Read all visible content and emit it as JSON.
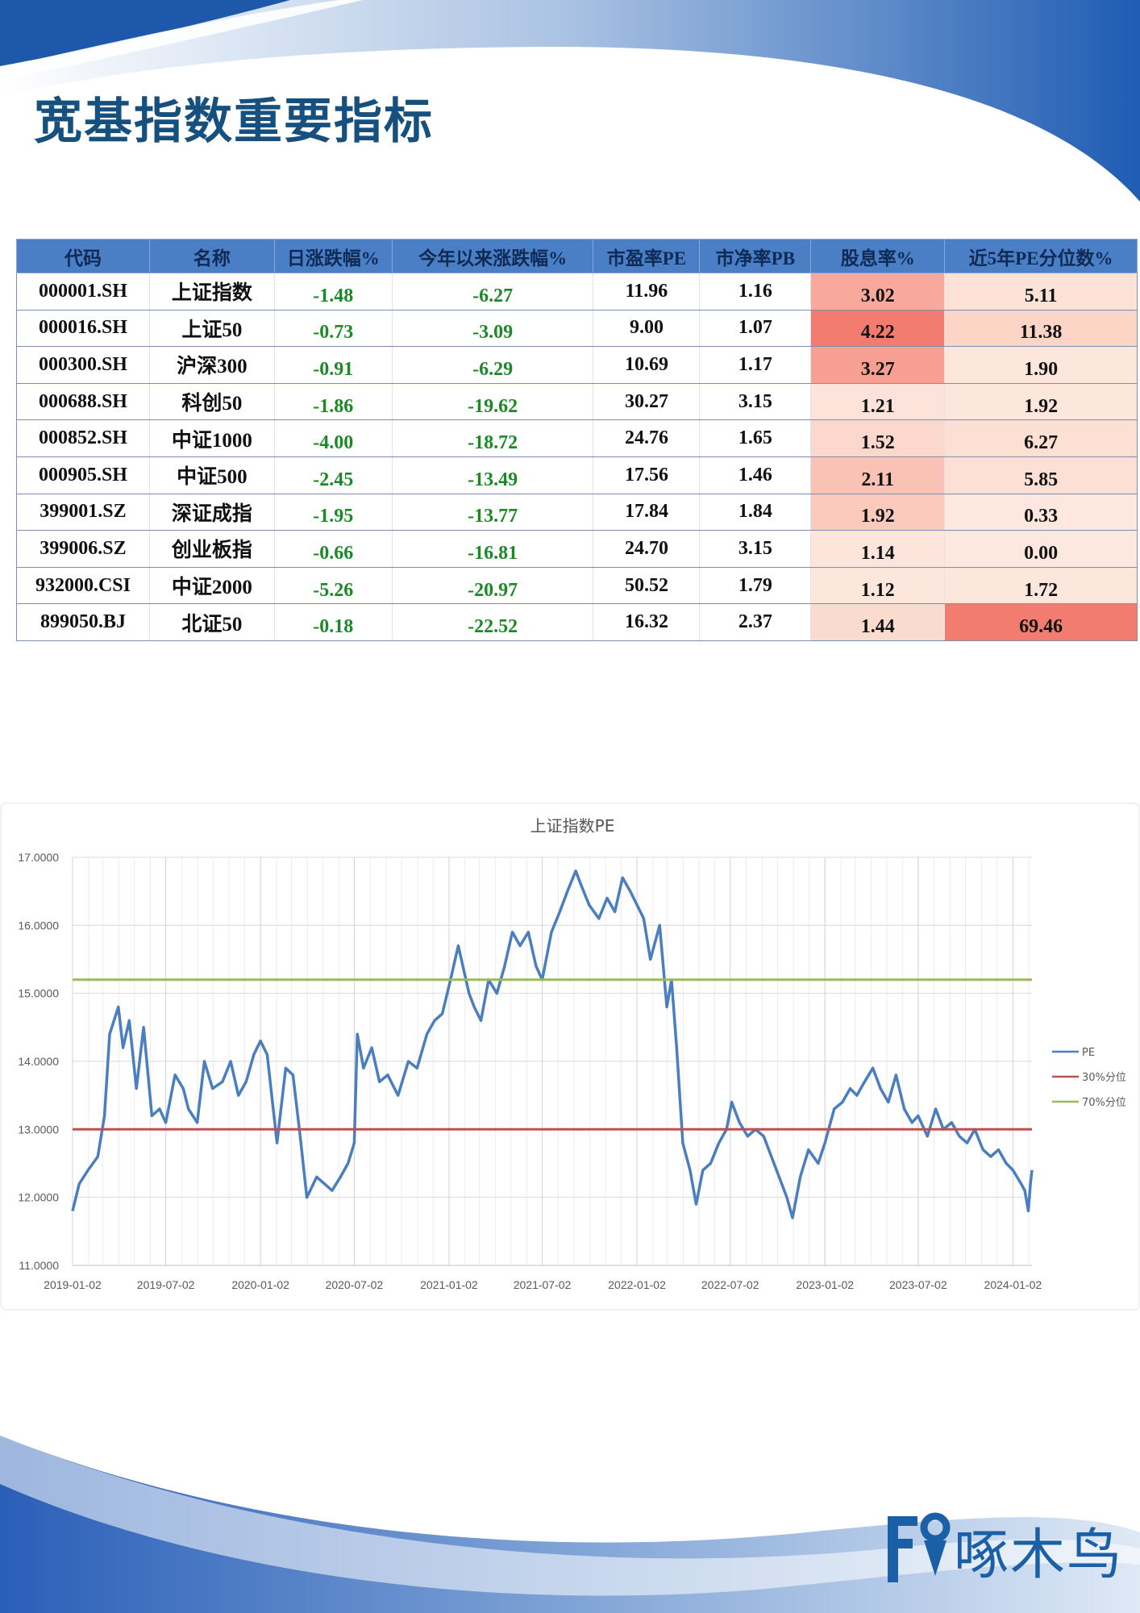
{
  "page": {
    "title": "宽基指数重要指标",
    "brand": "啄木鸟",
    "colors": {
      "title": "#16507f",
      "header_bg": "#4a7fc6",
      "negative": "#1b8a26",
      "brand_blue": "#1b5fa6"
    }
  },
  "table": {
    "headers": [
      "代码",
      "名称",
      "日涨跌幅%",
      "今年以来涨跌幅%",
      "市盈率PE",
      "市净率PB",
      "股息率%",
      "近5年PE分位数%"
    ],
    "rows": [
      {
        "code": "000001.SH",
        "name": "上证指数",
        "day": "-1.48",
        "ytd": "-6.27",
        "pe": "11.96",
        "pb": "1.16",
        "dy": "3.02",
        "pct": "5.11",
        "dy_color": "#f8a99c",
        "pct_color": "#fde2d8"
      },
      {
        "code": "000016.SH",
        "name": "上证50",
        "day": "-0.73",
        "ytd": "-3.09",
        "pe": "9.00",
        "pb": "1.07",
        "dy": "4.22",
        "pct": "11.38",
        "dy_color": "#f27c70",
        "pct_color": "#fcd5c7"
      },
      {
        "code": "000300.SH",
        "name": "沪深300",
        "day": "-0.91",
        "ytd": "-6.29",
        "pe": "10.69",
        "pb": "1.17",
        "dy": "3.27",
        "pct": "1.90",
        "dy_color": "#f69f92",
        "pct_color": "#fde6dc"
      },
      {
        "code": "000688.SH",
        "name": "科创50",
        "day": "-1.86",
        "ytd": "-19.62",
        "pe": "30.27",
        "pb": "3.15",
        "dy": "1.21",
        "pct": "1.92",
        "dy_color": "#fde3d9",
        "pct_color": "#fde6dc"
      },
      {
        "code": "000852.SH",
        "name": "中证1000",
        "day": "-4.00",
        "ytd": "-18.72",
        "pe": "24.76",
        "pb": "1.65",
        "dy": "1.52",
        "pct": "6.27",
        "dy_color": "#fcd8cc",
        "pct_color": "#fddfd4"
      },
      {
        "code": "000905.SH",
        "name": "中证500",
        "day": "-2.45",
        "ytd": "-13.49",
        "pe": "17.56",
        "pb": "1.46",
        "dy": "2.11",
        "pct": "5.85",
        "dy_color": "#fac2b5",
        "pct_color": "#fde0d5"
      },
      {
        "code": "399001.SZ",
        "name": "深证成指",
        "day": "-1.95",
        "ytd": "-13.77",
        "pe": "17.84",
        "pb": "1.84",
        "dy": "1.92",
        "pct": "0.33",
        "dy_color": "#fbcabd",
        "pct_color": "#fde7de"
      },
      {
        "code": "399006.SZ",
        "name": "创业板指",
        "day": "-0.66",
        "ytd": "-16.81",
        "pe": "24.70",
        "pb": "3.15",
        "dy": "1.14",
        "pct": "0.00",
        "dy_color": "#fde5db",
        "pct_color": "#fde8df"
      },
      {
        "code": "932000.CSI",
        "name": "中证2000",
        "day": "-5.26",
        "ytd": "-20.97",
        "pe": "50.52",
        "pb": "1.79",
        "dy": "1.12",
        "pct": "1.72",
        "dy_color": "#fde6dc",
        "pct_color": "#fde6dc"
      },
      {
        "code": "899050.BJ",
        "name": "北证50",
        "day": "-0.18",
        "ytd": "-22.52",
        "pe": "16.32",
        "pb": "2.37",
        "dy": "1.44",
        "pct": "69.46",
        "dy_color": "#fcdbcf",
        "pct_color": "#f27c70"
      }
    ]
  },
  "chart_data": {
    "type": "line",
    "title": "上证指数PE",
    "ylim": [
      11,
      17
    ],
    "yticks": [
      "11.0000",
      "12.0000",
      "13.0000",
      "14.0000",
      "15.0000",
      "16.0000",
      "17.0000"
    ],
    "xticks": [
      "2019-01-02",
      "2019-07-02",
      "2020-01-02",
      "2020-07-02",
      "2021-01-02",
      "2021-07-02",
      "2022-01-02",
      "2022-07-02",
      "2023-01-02",
      "2023-07-02",
      "2024-01-02"
    ],
    "grid": true,
    "legend_position": "right",
    "series": [
      {
        "name": "PE",
        "color": "#4a7ebf",
        "x": [
          "2019-01-02",
          "2019-01-15",
          "2019-02-01",
          "2019-02-20",
          "2019-03-05",
          "2019-03-15",
          "2019-04-01",
          "2019-04-10",
          "2019-04-22",
          "2019-05-06",
          "2019-05-20",
          "2019-06-05",
          "2019-06-20",
          "2019-07-02",
          "2019-07-20",
          "2019-08-05",
          "2019-08-15",
          "2019-09-01",
          "2019-09-15",
          "2019-10-01",
          "2019-10-20",
          "2019-11-05",
          "2019-11-20",
          "2019-12-05",
          "2019-12-20",
          "2020-01-02",
          "2020-01-15",
          "2020-02-03",
          "2020-02-20",
          "2020-03-05",
          "2020-03-19",
          "2020-04-01",
          "2020-04-20",
          "2020-05-05",
          "2020-05-20",
          "2020-06-05",
          "2020-06-20",
          "2020-07-02",
          "2020-07-08",
          "2020-07-20",
          "2020-08-05",
          "2020-08-20",
          "2020-09-05",
          "2020-09-25",
          "2020-10-15",
          "2020-11-01",
          "2020-11-20",
          "2020-12-05",
          "2020-12-20",
          "2021-01-05",
          "2021-01-20",
          "2021-02-10",
          "2021-02-20",
          "2021-03-05",
          "2021-03-20",
          "2021-04-05",
          "2021-04-20",
          "2021-05-05",
          "2021-05-20",
          "2021-06-05",
          "2021-06-20",
          "2021-07-02",
          "2021-07-20",
          "2021-08-05",
          "2021-08-20",
          "2021-09-05",
          "2021-09-15",
          "2021-10-01",
          "2021-10-20",
          "2021-11-05",
          "2021-11-20",
          "2021-12-05",
          "2021-12-20",
          "2022-01-02",
          "2022-01-15",
          "2022-01-28",
          "2022-02-15",
          "2022-03-01",
          "2022-03-10",
          "2022-03-20",
          "2022-04-01",
          "2022-04-15",
          "2022-04-27",
          "2022-05-10",
          "2022-05-25",
          "2022-06-10",
          "2022-06-25",
          "2022-07-05",
          "2022-07-20",
          "2022-08-05",
          "2022-08-20",
          "2022-09-05",
          "2022-09-20",
          "2022-10-05",
          "2022-10-20",
          "2022-10-31",
          "2022-11-15",
          "2022-12-01",
          "2022-12-20",
          "2023-01-02",
          "2023-01-20",
          "2023-02-05",
          "2023-02-20",
          "2023-03-05",
          "2023-03-20",
          "2023-04-05",
          "2023-04-20",
          "2023-05-05",
          "2023-05-20",
          "2023-06-05",
          "2023-06-20",
          "2023-07-02",
          "2023-07-20",
          "2023-08-05",
          "2023-08-20",
          "2023-09-05",
          "2023-09-20",
          "2023-10-05",
          "2023-10-20",
          "2023-11-05",
          "2023-11-20",
          "2023-12-05",
          "2023-12-20",
          "2024-01-02",
          "2024-01-10",
          "2024-01-18",
          "2024-01-25",
          "2024-02-01",
          "2024-02-05",
          "2024-02-08"
        ],
        "values": [
          11.8,
          12.2,
          12.4,
          12.6,
          13.2,
          14.4,
          14.8,
          14.2,
          14.6,
          13.6,
          14.5,
          13.2,
          13.3,
          13.1,
          13.8,
          13.6,
          13.3,
          13.1,
          14.0,
          13.6,
          13.7,
          14.0,
          13.5,
          13.7,
          14.1,
          14.3,
          14.1,
          12.8,
          13.9,
          13.8,
          12.9,
          12.0,
          12.3,
          12.2,
          12.1,
          12.3,
          12.5,
          12.8,
          14.4,
          13.9,
          14.2,
          13.7,
          13.8,
          13.5,
          14.0,
          13.9,
          14.4,
          14.6,
          14.7,
          15.2,
          15.7,
          15.0,
          14.8,
          14.6,
          15.2,
          15.0,
          15.4,
          15.9,
          15.7,
          15.9,
          15.4,
          15.2,
          15.9,
          16.2,
          16.5,
          16.8,
          16.6,
          16.3,
          16.1,
          16.4,
          16.2,
          16.7,
          16.5,
          16.3,
          16.1,
          15.5,
          16.0,
          14.8,
          15.2,
          14.2,
          12.8,
          12.4,
          11.9,
          12.4,
          12.5,
          12.8,
          13.0,
          13.4,
          13.1,
          12.9,
          13.0,
          12.9,
          12.6,
          12.3,
          12.0,
          11.7,
          12.3,
          12.7,
          12.5,
          12.8,
          13.3,
          13.4,
          13.6,
          13.5,
          13.7,
          13.9,
          13.6,
          13.4,
          13.8,
          13.3,
          13.1,
          13.2,
          12.9,
          13.3,
          13.0,
          13.1,
          12.9,
          12.8,
          13.0,
          12.7,
          12.6,
          12.7,
          12.5,
          12.4,
          12.3,
          12.2,
          12.1,
          11.8,
          12.2,
          12.4
        ]
      },
      {
        "name": "30%分位",
        "color": "#c0504d",
        "x": [
          "2019-01-02",
          "2024-02-08"
        ],
        "values": [
          13.0,
          13.0
        ]
      },
      {
        "name": "70%分位",
        "color": "#9bbb59",
        "x": [
          "2019-01-02",
          "2024-02-08"
        ],
        "values": [
          15.2,
          15.2
        ]
      }
    ]
  }
}
